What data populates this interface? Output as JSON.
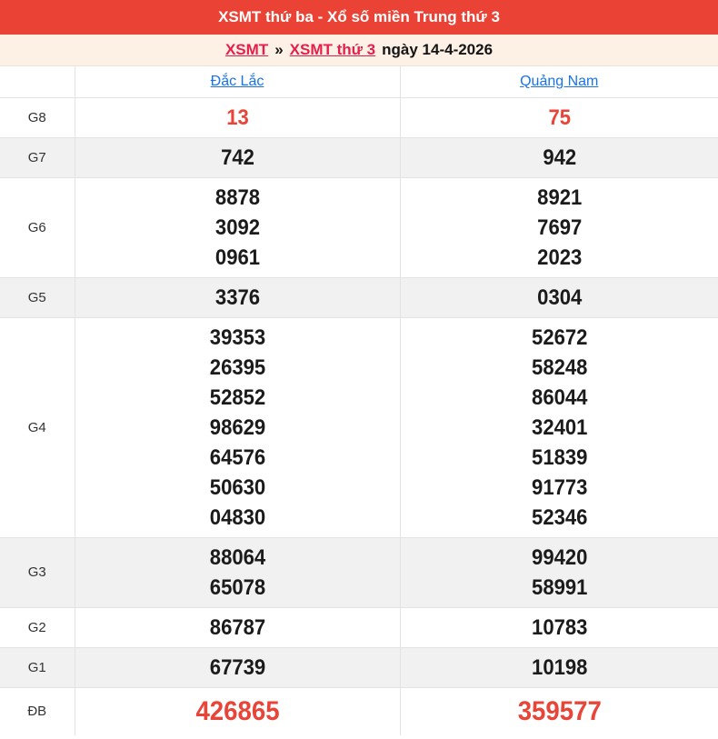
{
  "banner": {
    "title": "XSMT thứ ba - Xổ số miền Trung thứ 3"
  },
  "breadcrumb": {
    "link1": "XSMT",
    "separator": "»",
    "link2": "XSMT thứ 3",
    "date_text": "ngày 14-4-2026"
  },
  "colors": {
    "banner_red": "#ea4335",
    "number_red": "#e94438",
    "breadcrumb_link_red": "#e61e4b",
    "breadcrumb_bg": "#fdf1e6",
    "province_link_blue": "#1a73e8",
    "shaded_row_gray": "#f1f1f1",
    "border_gray": "#e3e3e3"
  },
  "table": {
    "columns": [
      "Đắc Lắc",
      "Quảng Nam"
    ],
    "rows": [
      {
        "id": "g8",
        "label": "G8",
        "shaded": false,
        "highlight": true,
        "large": false,
        "cols": [
          [
            "13"
          ],
          [
            "75"
          ]
        ]
      },
      {
        "id": "g7",
        "label": "G7",
        "shaded": true,
        "highlight": false,
        "large": false,
        "cols": [
          [
            "742"
          ],
          [
            "942"
          ]
        ]
      },
      {
        "id": "g6",
        "label": "G6",
        "shaded": false,
        "highlight": false,
        "large": false,
        "cols": [
          [
            "8878",
            "3092",
            "0961"
          ],
          [
            "8921",
            "7697",
            "2023"
          ]
        ]
      },
      {
        "id": "g5",
        "label": "G5",
        "shaded": true,
        "highlight": false,
        "large": false,
        "cols": [
          [
            "3376"
          ],
          [
            "0304"
          ]
        ]
      },
      {
        "id": "g4",
        "label": "G4",
        "shaded": false,
        "highlight": false,
        "large": false,
        "cols": [
          [
            "39353",
            "26395",
            "52852",
            "98629",
            "64576",
            "50630",
            "04830"
          ],
          [
            "52672",
            "58248",
            "86044",
            "32401",
            "51839",
            "91773",
            "52346"
          ]
        ]
      },
      {
        "id": "g3",
        "label": "G3",
        "shaded": true,
        "highlight": false,
        "large": false,
        "cols": [
          [
            "88064",
            "65078"
          ],
          [
            "99420",
            "58991"
          ]
        ]
      },
      {
        "id": "g2",
        "label": "G2",
        "shaded": false,
        "highlight": false,
        "large": false,
        "cols": [
          [
            "86787"
          ],
          [
            "10783"
          ]
        ]
      },
      {
        "id": "g1",
        "label": "G1",
        "shaded": true,
        "highlight": false,
        "large": false,
        "cols": [
          [
            "67739"
          ],
          [
            "10198"
          ]
        ]
      },
      {
        "id": "db",
        "label": "ĐB",
        "shaded": false,
        "highlight": true,
        "large": true,
        "cols": [
          [
            "426865"
          ],
          [
            "359577"
          ]
        ]
      }
    ]
  }
}
